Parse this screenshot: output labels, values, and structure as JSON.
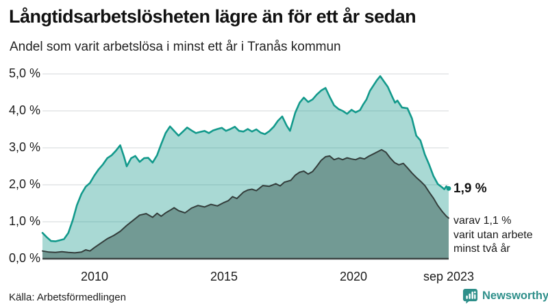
{
  "header": {
    "title": "Långtidsarbetslösheten lägre än för ett år sedan",
    "subtitle": "Andel som varit arbetslösa i minst ett år i Tranås kommun"
  },
  "annotations": {
    "end_value": "1,9 %",
    "detail_lines": [
      "varav 1,1 %",
      "varit utan arbete",
      "minst två år"
    ]
  },
  "footer": {
    "source": "Källa: Arbetsförmedlingen",
    "brand": "Newsworthy"
  },
  "colors": {
    "accent_teal": "#12998b",
    "light_fill": "rgba(17,150,137,0.36)",
    "dark_fill": "#6f9791",
    "dark_line": "#333d3b",
    "gridline": "#dcdfe0",
    "baseline": "#3c4442",
    "brand_teal": "#2e8f8a"
  },
  "chart_data": {
    "type": "area",
    "title": "Långtidsarbetslösheten lägre än för ett år sedan",
    "subtitle": "Andel som varit arbetslösa i minst ett år i Tranås kommun",
    "xlabel": "",
    "ylabel": "",
    "unit": "%",
    "x_range": [
      2008.0,
      2023.67
    ],
    "y_range": [
      0,
      5
    ],
    "grid": true,
    "legend": "none",
    "y_ticks": [
      {
        "label": "0,0 %",
        "value": 0
      },
      {
        "label": "1,0 %",
        "value": 1
      },
      {
        "label": "2,0 %",
        "value": 2
      },
      {
        "label": "3,0 %",
        "value": 3
      },
      {
        "label": "4,0 %",
        "value": 4
      },
      {
        "label": "5,0 %",
        "value": 5
      }
    ],
    "x_ticks": [
      {
        "label": "2010",
        "value": 2010
      },
      {
        "label": "2015",
        "value": 2015
      },
      {
        "label": "2020",
        "value": 2020
      },
      {
        "label": "sep 2023",
        "value": 2023.67
      }
    ],
    "series": [
      {
        "name": "Arbetslösa minst ett år",
        "color": "#12998b",
        "fill": "rgba(17,150,137,0.36)",
        "line_width": 2.6,
        "end_label": "1,9 %",
        "points": [
          [
            2008.0,
            0.7
          ],
          [
            2008.17,
            0.58
          ],
          [
            2008.33,
            0.48
          ],
          [
            2008.5,
            0.47
          ],
          [
            2008.67,
            0.5
          ],
          [
            2008.83,
            0.53
          ],
          [
            2009.0,
            0.7
          ],
          [
            2009.17,
            1.05
          ],
          [
            2009.33,
            1.45
          ],
          [
            2009.5,
            1.75
          ],
          [
            2009.67,
            1.95
          ],
          [
            2009.83,
            2.05
          ],
          [
            2010.0,
            2.25
          ],
          [
            2010.17,
            2.42
          ],
          [
            2010.33,
            2.55
          ],
          [
            2010.5,
            2.72
          ],
          [
            2010.67,
            2.8
          ],
          [
            2010.83,
            2.92
          ],
          [
            2011.0,
            3.07
          ],
          [
            2011.15,
            2.75
          ],
          [
            2011.25,
            2.5
          ],
          [
            2011.42,
            2.72
          ],
          [
            2011.58,
            2.78
          ],
          [
            2011.75,
            2.62
          ],
          [
            2011.92,
            2.72
          ],
          [
            2012.08,
            2.73
          ],
          [
            2012.25,
            2.6
          ],
          [
            2012.42,
            2.8
          ],
          [
            2012.58,
            3.1
          ],
          [
            2012.75,
            3.4
          ],
          [
            2012.92,
            3.58
          ],
          [
            2013.08,
            3.46
          ],
          [
            2013.25,
            3.33
          ],
          [
            2013.42,
            3.44
          ],
          [
            2013.58,
            3.55
          ],
          [
            2013.75,
            3.47
          ],
          [
            2013.92,
            3.4
          ],
          [
            2014.08,
            3.43
          ],
          [
            2014.25,
            3.46
          ],
          [
            2014.42,
            3.4
          ],
          [
            2014.58,
            3.47
          ],
          [
            2014.75,
            3.51
          ],
          [
            2014.92,
            3.54
          ],
          [
            2015.08,
            3.46
          ],
          [
            2015.25,
            3.51
          ],
          [
            2015.42,
            3.57
          ],
          [
            2015.58,
            3.46
          ],
          [
            2015.75,
            3.44
          ],
          [
            2015.92,
            3.51
          ],
          [
            2016.08,
            3.44
          ],
          [
            2016.25,
            3.5
          ],
          [
            2016.42,
            3.41
          ],
          [
            2016.58,
            3.37
          ],
          [
            2016.75,
            3.45
          ],
          [
            2016.92,
            3.57
          ],
          [
            2017.08,
            3.73
          ],
          [
            2017.25,
            3.85
          ],
          [
            2017.42,
            3.6
          ],
          [
            2017.55,
            3.46
          ],
          [
            2017.75,
            3.95
          ],
          [
            2017.92,
            4.22
          ],
          [
            2018.08,
            4.36
          ],
          [
            2018.25,
            4.24
          ],
          [
            2018.42,
            4.31
          ],
          [
            2018.58,
            4.44
          ],
          [
            2018.75,
            4.55
          ],
          [
            2018.92,
            4.62
          ],
          [
            2019.08,
            4.38
          ],
          [
            2019.25,
            4.15
          ],
          [
            2019.42,
            4.05
          ],
          [
            2019.58,
            4.0
          ],
          [
            2019.75,
            3.92
          ],
          [
            2019.92,
            4.03
          ],
          [
            2020.08,
            3.96
          ],
          [
            2020.25,
            4.02
          ],
          [
            2020.37,
            4.17
          ],
          [
            2020.5,
            4.31
          ],
          [
            2020.63,
            4.54
          ],
          [
            2020.77,
            4.69
          ],
          [
            2020.9,
            4.83
          ],
          [
            2021.03,
            4.94
          ],
          [
            2021.16,
            4.81
          ],
          [
            2021.32,
            4.65
          ],
          [
            2021.5,
            4.37
          ],
          [
            2021.6,
            4.22
          ],
          [
            2021.69,
            4.28
          ],
          [
            2021.87,
            4.09
          ],
          [
            2022.08,
            4.07
          ],
          [
            2022.25,
            3.8
          ],
          [
            2022.42,
            3.33
          ],
          [
            2022.58,
            3.2
          ],
          [
            2022.75,
            2.82
          ],
          [
            2022.92,
            2.54
          ],
          [
            2023.08,
            2.24
          ],
          [
            2023.25,
            2.02
          ],
          [
            2023.42,
            1.93
          ],
          [
            2023.5,
            1.88
          ],
          [
            2023.58,
            1.96
          ],
          [
            2023.67,
            1.9
          ]
        ]
      },
      {
        "name": "varav utan arbete minst två år",
        "color": "#333d3b",
        "fill": "#6f9791",
        "line_width": 2,
        "end_label": "1,1 %",
        "points": [
          [
            2008.0,
            0.21
          ],
          [
            2008.25,
            0.18
          ],
          [
            2008.5,
            0.17
          ],
          [
            2008.75,
            0.19
          ],
          [
            2009.0,
            0.17
          ],
          [
            2009.25,
            0.16
          ],
          [
            2009.5,
            0.18
          ],
          [
            2009.67,
            0.24
          ],
          [
            2009.83,
            0.21
          ],
          [
            2010.0,
            0.3
          ],
          [
            2010.25,
            0.42
          ],
          [
            2010.5,
            0.54
          ],
          [
            2010.75,
            0.63
          ],
          [
            2011.0,
            0.74
          ],
          [
            2011.25,
            0.9
          ],
          [
            2011.5,
            1.04
          ],
          [
            2011.75,
            1.18
          ],
          [
            2012.0,
            1.22
          ],
          [
            2012.25,
            1.12
          ],
          [
            2012.42,
            1.23
          ],
          [
            2012.58,
            1.15
          ],
          [
            2012.75,
            1.24
          ],
          [
            2012.92,
            1.31
          ],
          [
            2013.08,
            1.38
          ],
          [
            2013.25,
            1.3
          ],
          [
            2013.5,
            1.24
          ],
          [
            2013.75,
            1.37
          ],
          [
            2014.0,
            1.44
          ],
          [
            2014.25,
            1.4
          ],
          [
            2014.5,
            1.47
          ],
          [
            2014.75,
            1.43
          ],
          [
            2015.0,
            1.52
          ],
          [
            2015.17,
            1.57
          ],
          [
            2015.33,
            1.68
          ],
          [
            2015.5,
            1.63
          ],
          [
            2015.75,
            1.8
          ],
          [
            2015.92,
            1.86
          ],
          [
            2016.08,
            1.88
          ],
          [
            2016.25,
            1.84
          ],
          [
            2016.5,
            1.98
          ],
          [
            2016.75,
            1.96
          ],
          [
            2017.0,
            2.03
          ],
          [
            2017.17,
            1.97
          ],
          [
            2017.33,
            2.07
          ],
          [
            2017.58,
            2.12
          ],
          [
            2017.75,
            2.26
          ],
          [
            2017.92,
            2.34
          ],
          [
            2018.08,
            2.37
          ],
          [
            2018.25,
            2.29
          ],
          [
            2018.42,
            2.36
          ],
          [
            2018.58,
            2.5
          ],
          [
            2018.75,
            2.66
          ],
          [
            2018.92,
            2.76
          ],
          [
            2019.08,
            2.78
          ],
          [
            2019.25,
            2.68
          ],
          [
            2019.42,
            2.72
          ],
          [
            2019.58,
            2.68
          ],
          [
            2019.75,
            2.73
          ],
          [
            2019.92,
            2.7
          ],
          [
            2020.08,
            2.68
          ],
          [
            2020.25,
            2.73
          ],
          [
            2020.42,
            2.7
          ],
          [
            2020.58,
            2.77
          ],
          [
            2020.75,
            2.83
          ],
          [
            2020.92,
            2.89
          ],
          [
            2021.08,
            2.95
          ],
          [
            2021.25,
            2.88
          ],
          [
            2021.42,
            2.72
          ],
          [
            2021.58,
            2.6
          ],
          [
            2021.75,
            2.54
          ],
          [
            2021.92,
            2.58
          ],
          [
            2022.08,
            2.46
          ],
          [
            2022.25,
            2.32
          ],
          [
            2022.42,
            2.2
          ],
          [
            2022.58,
            2.1
          ],
          [
            2022.75,
            1.98
          ],
          [
            2022.92,
            1.8
          ],
          [
            2023.08,
            1.64
          ],
          [
            2023.25,
            1.44
          ],
          [
            2023.42,
            1.28
          ],
          [
            2023.58,
            1.15
          ],
          [
            2023.67,
            1.1
          ]
        ]
      }
    ]
  }
}
